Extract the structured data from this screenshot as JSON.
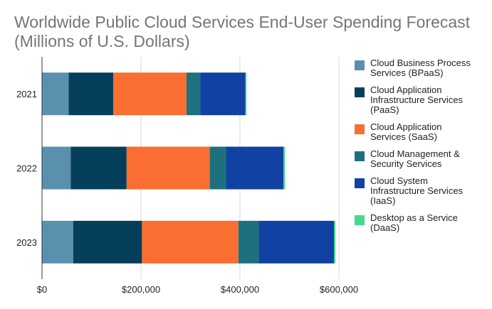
{
  "chart_data": {
    "type": "bar",
    "orientation": "horizontal",
    "stacked": true,
    "title": [
      "Worldwide Public Cloud Services End-User Spending Forecast",
      "(Millions of U.S. Dollars)"
    ],
    "categories": [
      "2021",
      "2022",
      "2023"
    ],
    "xlim": [
      0,
      600000
    ],
    "x_ticks": [
      "$0",
      "$200,000",
      "$400,000",
      "$600,000"
    ],
    "x_tick_values": [
      0,
      200000,
      400000,
      600000
    ],
    "grid": true,
    "legend_position": "right",
    "series": [
      {
        "name": "Cloud Business Process\nServices (BPaaS)",
        "color": "#5b8fae",
        "values": [
          54000,
          58000,
          63000
        ]
      },
      {
        "name": "Cloud Application\nInfrastructure Services\n(PaaS)",
        "color": "#063f5c",
        "values": [
          90000,
          113000,
          139000
        ]
      },
      {
        "name": "Cloud Application\nServices (SaaS)",
        "color": "#fa6e31",
        "values": [
          148000,
          168000,
          195000
        ]
      },
      {
        "name": "Cloud Management &\nSecurity Services",
        "color": "#1d717f",
        "values": [
          28000,
          33000,
          41000
        ]
      },
      {
        "name": "Cloud System\nInfrastructure Services\n(IaaS)",
        "color": "#1041a3",
        "values": [
          91000,
          116000,
          152000
        ]
      },
      {
        "name": "Desktop as a Service\n(DaaS)",
        "color": "#43db90",
        "values": [
          2000,
          3000,
          3000
        ]
      }
    ]
  }
}
